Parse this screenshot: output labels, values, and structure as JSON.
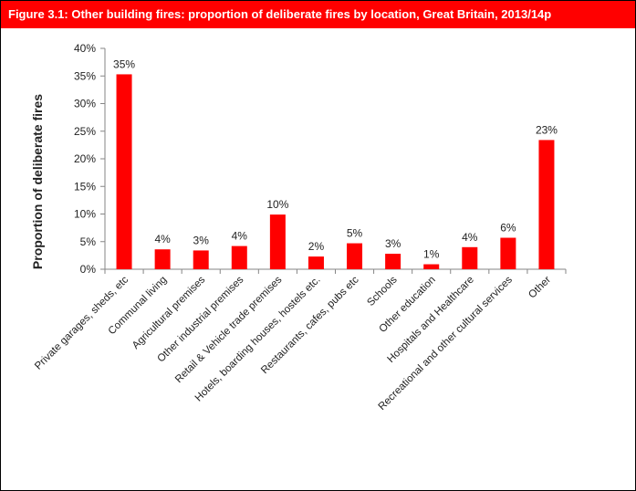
{
  "figure": {
    "title": "Figure 3.1: Other building fires: proportion of deliberate fires by location, Great Britain, 2013/14p"
  },
  "colors": {
    "title_bar": "#ff0000",
    "bars": "#ff0000",
    "title_text": "#ffffff"
  },
  "chart_data": {
    "type": "bar",
    "title": "",
    "xlabel": "",
    "ylabel": "Proportion of deliberate fires",
    "ylim": [
      0,
      40
    ],
    "y_ticks": [
      "0%",
      "5%",
      "10%",
      "15%",
      "20%",
      "25%",
      "30%",
      "35%",
      "40%"
    ],
    "grid": false,
    "categories": [
      "Private garages, sheds, etc",
      "Communal living",
      "Agricultural premises",
      "Other industrial premises",
      "Retail & Vehicle trade premises",
      "Hotels, boarding houses, hostels etc.",
      "Restaurants, cafes, pubs etc",
      "Schools",
      "Other education",
      "Hospitals and Healthcare",
      "Recreational and other cultural services",
      "Other"
    ],
    "values": [
      35.3,
      3.6,
      3.4,
      4.2,
      9.9,
      2.3,
      4.7,
      2.8,
      0.9,
      4.0,
      5.7,
      23.4
    ],
    "data_labels": [
      "35%",
      "4%",
      "3%",
      "4%",
      "10%",
      "2%",
      "5%",
      "3%",
      "1%",
      "4%",
      "6%",
      "23%"
    ]
  }
}
